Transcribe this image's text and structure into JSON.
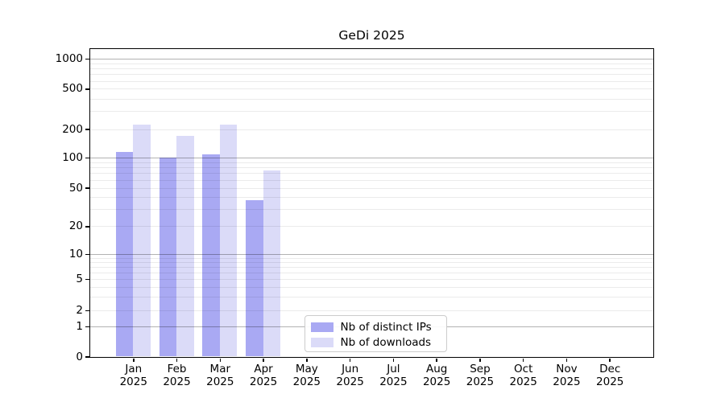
{
  "title": "GeDi 2025",
  "chart_data": {
    "type": "bar",
    "title": "GeDi 2025",
    "categories": [
      "Jan",
      "Feb",
      "Mar",
      "Apr",
      "May",
      "Jun",
      "Jul",
      "Aug",
      "Sep",
      "Oct",
      "Nov",
      "Dec"
    ],
    "category_year": "2025",
    "series": [
      {
        "name": "Nb of distinct IPs",
        "color": "#a9a9f3",
        "values": [
          116,
          100,
          108,
          37,
          null,
          null,
          null,
          null,
          null,
          null,
          null,
          null
        ]
      },
      {
        "name": "Nb of downloads",
        "color": "#dbdbf8",
        "values": [
          220,
          170,
          220,
          74,
          null,
          null,
          null,
          null,
          null,
          null,
          null,
          null
        ]
      }
    ],
    "yscale": "symlog",
    "yticks": [
      0,
      1,
      2,
      5,
      10,
      20,
      50,
      100,
      200,
      500,
      1000
    ],
    "ylim": [
      0,
      1300
    ],
    "xlabel": "",
    "ylabel": "",
    "grid": "horizontal major and minor gridlines",
    "legend_position": "inside lower center"
  }
}
